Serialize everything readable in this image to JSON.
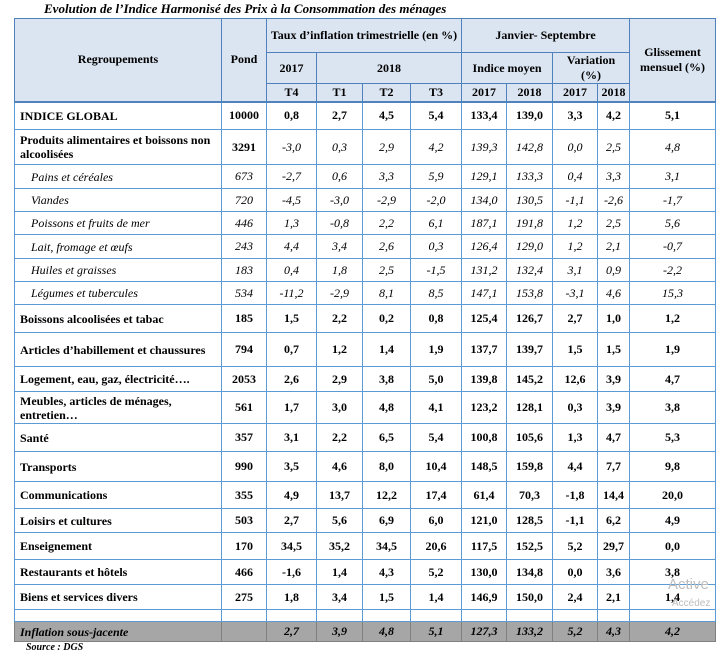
{
  "header": {
    "title": "Evolution de l’Indice Harmonisé des Prix à la Consommation des ménages"
  },
  "table": {
    "columns": {
      "group": "Regroupements",
      "pond": "Pond",
      "quarterly": "Taux d’inflation trimestrielle (en %)",
      "period": "Janvier- Septembre",
      "glissement": "Glissement mensuel (%)",
      "year_a": "2017",
      "year_b": "2018",
      "indice": "Indice moyen",
      "variation": "Variation (%)"
    },
    "subcolumns": [
      "T4",
      "T1",
      "T2",
      "T3",
      "2017",
      "2018",
      "2017",
      "2018"
    ],
    "rows": [
      {
        "label": "INDICE GLOBAL",
        "pond": "10000",
        "values": [
          "0,8",
          "2,7",
          "4,5",
          "5,4",
          "133,4",
          "139,0",
          "3,3",
          "4,2",
          "5,1"
        ]
      },
      {
        "label": "Produits alimentaires et boissons non alcoolisées",
        "pond": "3291",
        "values": [
          "-3,0",
          "0,3",
          "2,9",
          "4,2",
          "139,3",
          "142,8",
          "0,0",
          "2,5",
          "4,8"
        ]
      },
      {
        "label": "Pains et céréales",
        "pond": "673",
        "values": [
          "-2,7",
          "0,6",
          "3,3",
          "5,9",
          "129,1",
          "133,3",
          "0,4",
          "3,3",
          "3,1"
        ]
      },
      {
        "label": "Viandes",
        "pond": "720",
        "values": [
          "-4,5",
          "-3,0",
          "-2,9",
          "-2,0",
          "134,0",
          "130,5",
          "-1,1",
          "-2,6",
          "-1,7"
        ]
      },
      {
        "label": "Poissons et fruits de mer",
        "pond": "446",
        "values": [
          "1,3",
          "-0,8",
          "2,2",
          "6,1",
          "187,1",
          "191,8",
          "1,2",
          "2,5",
          "5,6"
        ]
      },
      {
        "label": "Lait, fromage et œufs",
        "pond": "243",
        "values": [
          "4,4",
          "3,4",
          "2,6",
          "0,3",
          "126,4",
          "129,0",
          "1,2",
          "2,1",
          "-0,7"
        ]
      },
      {
        "label": "Huiles et graisses",
        "pond": "183",
        "values": [
          "0,4",
          "1,8",
          "2,5",
          "-1,5",
          "131,2",
          "132,4",
          "3,1",
          "0,9",
          "-2,2"
        ]
      },
      {
        "label": "Légumes et tubercules",
        "pond": "534",
        "values": [
          "-11,2",
          "-2,9",
          "8,1",
          "8,5",
          "147,1",
          "153,8",
          "-3,1",
          "4,6",
          "15,3"
        ]
      },
      {
        "label": "Boissons alcoolisées et tabac",
        "pond": "185",
        "values": [
          "1,5",
          "2,2",
          "0,2",
          "0,8",
          "125,4",
          "126,7",
          "2,7",
          "1,0",
          "1,2"
        ]
      },
      {
        "label": "Articles d’habillement et chaussures",
        "pond": "794",
        "values": [
          "0,7",
          "1,2",
          "1,4",
          "1,9",
          "137,7",
          "139,7",
          "1,5",
          "1,5",
          "1,9"
        ]
      },
      {
        "label": "Logement, eau, gaz, électricité….",
        "pond": "2053",
        "values": [
          "2,6",
          "2,9",
          "3,8",
          "5,0",
          "139,8",
          "145,2",
          "12,6",
          "3,9",
          "4,7"
        ]
      },
      {
        "label": "Meubles, articles de ménages, entretien…",
        "pond": "561",
        "values": [
          "1,7",
          "3,0",
          "4,8",
          "4,1",
          "123,2",
          "128,1",
          "0,3",
          "3,9",
          "3,8"
        ]
      },
      {
        "label": "Santé",
        "pond": "357",
        "values": [
          "3,1",
          "2,2",
          "6,5",
          "5,4",
          "100,8",
          "105,6",
          "1,3",
          "4,7",
          "5,3"
        ]
      },
      {
        "label": "Transports",
        "pond": "990",
        "values": [
          "3,5",
          "4,6",
          "8,0",
          "10,4",
          "148,5",
          "159,8",
          "4,4",
          "7,7",
          "9,8"
        ]
      },
      {
        "label": "Communications",
        "pond": "355",
        "values": [
          "4,9",
          "13,7",
          "12,2",
          "17,4",
          "61,4",
          "70,3",
          "-1,8",
          "14,4",
          "20,0"
        ]
      },
      {
        "label": "Loisirs et cultures",
        "pond": "503",
        "values": [
          "2,7",
          "5,6",
          "6,9",
          "6,0",
          "121,0",
          "128,5",
          "-1,1",
          "6,2",
          "4,9"
        ]
      },
      {
        "label": "Enseignement",
        "pond": "170",
        "values": [
          "34,5",
          "35,2",
          "34,5",
          "20,6",
          "117,5",
          "152,5",
          "5,2",
          "29,7",
          "0,0"
        ]
      },
      {
        "label": "Restaurants et hôtels",
        "pond": "466",
        "values": [
          "-1,6",
          "1,4",
          "4,3",
          "5,2",
          "130,0",
          "134,8",
          "0,0",
          "3,6",
          "3,8"
        ]
      },
      {
        "label": "Biens et services divers",
        "pond": "275",
        "values": [
          "1,8",
          "3,4",
          "1,5",
          "1,4",
          "146,9",
          "150,0",
          "2,4",
          "2,1",
          "1,4"
        ]
      },
      {
        "label": "Inflation sous-jacente",
        "values": [
          "2,7",
          "3,9",
          "4,8",
          "5,1",
          "127,3",
          "133,2",
          "5,2",
          "4,3",
          "4,2"
        ]
      }
    ]
  },
  "footer": {
    "source": "Source : DGS"
  },
  "watermark": {
    "line1": "Active",
    "line2": "Accédez"
  }
}
